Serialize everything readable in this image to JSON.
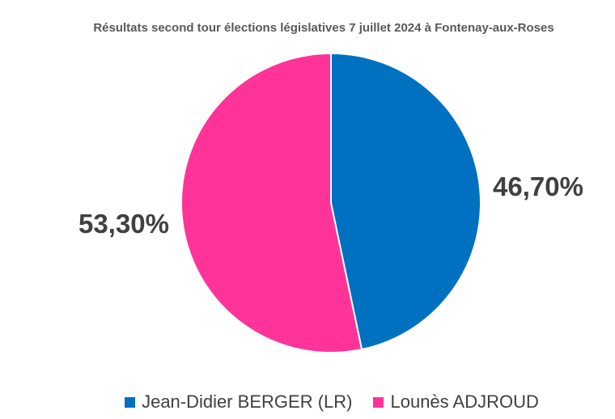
{
  "chart_data": {
    "type": "pie",
    "title": "Résultats second tour élections législatives 7 juillet 2024 à Fontenay-aux-Roses",
    "slices": [
      {
        "name": "Jean-Didier BERGER (LR)",
        "value": 46.7,
        "label": "46,70%",
        "color": "#0070C0"
      },
      {
        "name": "Lounès ADJROUD",
        "value": 53.3,
        "label": "53,30%",
        "color": "#FF3399"
      }
    ],
    "legend_position": "bottom",
    "start_angle_deg": 0,
    "direction": "clockwise"
  }
}
